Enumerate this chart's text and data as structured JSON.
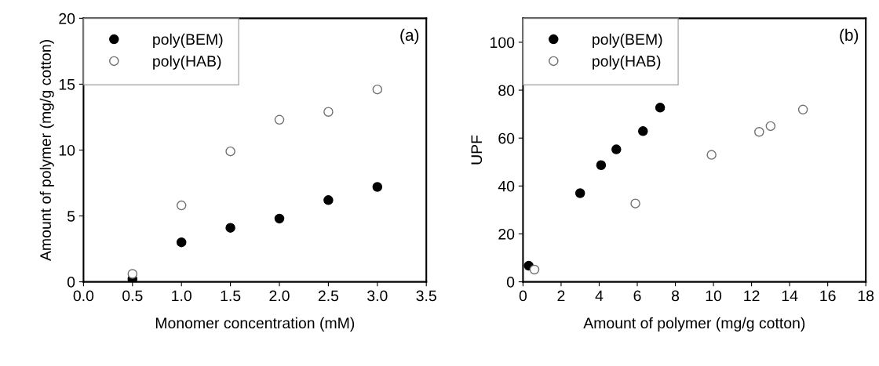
{
  "chart_data": [
    {
      "type": "scatter",
      "xlabel": "Monomer concentration (mM)",
      "ylabel": "Amount of polymer (mg/g cotton)",
      "xlim": [
        0,
        3.5
      ],
      "ylim": [
        0,
        20
      ],
      "xticks": [
        {
          "value": 0,
          "label": "0.0"
        },
        0.5,
        {
          "value": 1,
          "label": "1.0"
        },
        1.5,
        {
          "value": 2,
          "label": "2.0"
        },
        2.5,
        {
          "value": 3,
          "label": "3.0"
        },
        3.5
      ],
      "yticks": [
        0,
        5,
        10,
        15,
        20
      ],
      "grid": false,
      "legend": "top left",
      "marker": "circle",
      "annotations": [
        "(a)"
      ],
      "series": [
        {
          "name": "poly(BEM)",
          "color": "#000000",
          "x": [
            0.5,
            1.0,
            1.5,
            2.0,
            2.5,
            3.0
          ],
          "values": [
            0.2,
            3.0,
            4.1,
            4.8,
            6.2,
            7.2
          ]
        },
        {
          "name": "poly(HAB)",
          "color": "#ffffff",
          "x": [
            0.5,
            1.0,
            1.5,
            2.0,
            2.5,
            3.0
          ],
          "values": [
            0.6,
            5.8,
            9.9,
            12.3,
            12.9,
            14.6
          ]
        }
      ]
    },
    {
      "type": "scatter",
      "xlabel": "Amount of polymer (mg/g cotton)",
      "ylabel": "UPF",
      "xlim": [
        0,
        18
      ],
      "ylim": [
        0,
        110
      ],
      "xticks": [
        0,
        2,
        4,
        6,
        8,
        10,
        12,
        14,
        16,
        18
      ],
      "yticks": [
        0,
        20,
        40,
        60,
        80,
        100
      ],
      "grid": false,
      "legend": "top left",
      "marker": "circle",
      "annotations": [
        "(b)"
      ],
      "series": [
        {
          "name": "poly(BEM)",
          "color": "#000000",
          "x": [
            0.3,
            3.0,
            4.1,
            4.9,
            6.3,
            7.2
          ],
          "values": [
            6.7,
            37,
            48.7,
            55.3,
            62.9,
            72.7
          ]
        },
        {
          "name": "poly(HAB)",
          "color": "#ffffff",
          "x": [
            0.6,
            5.9,
            9.9,
            12.4,
            13.0,
            14.7
          ],
          "values": [
            5.1,
            32.7,
            53,
            62.6,
            65,
            71.9
          ]
        }
      ]
    }
  ]
}
